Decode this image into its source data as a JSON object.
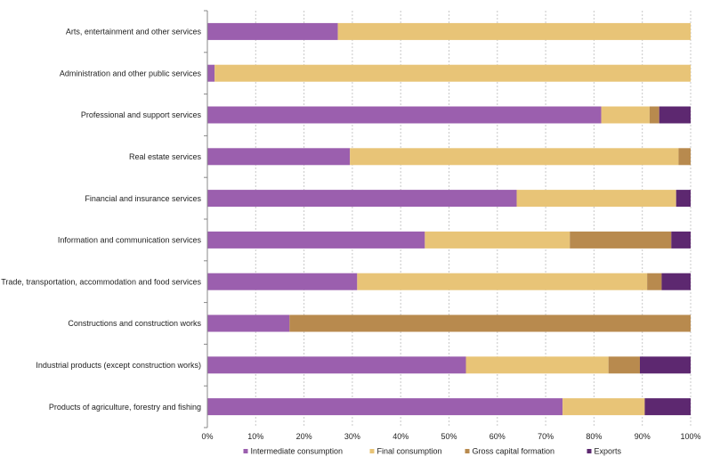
{
  "chart_data": {
    "type": "bar",
    "orientation": "horizontal",
    "stacked": true,
    "percent": true,
    "title": "",
    "xlabel": "",
    "ylabel": "",
    "xlim": [
      0,
      100
    ],
    "grid": "vertical dashed",
    "legend_position": "bottom",
    "x_ticks": [
      "0%",
      "10%",
      "20%",
      "30%",
      "40%",
      "50%",
      "60%",
      "70%",
      "80%",
      "90%",
      "100%"
    ],
    "categories": [
      "Arts, entertainment and other services",
      "Administration and other public services",
      "Professional and support services",
      "Real estate services",
      "Financial and insurance services",
      "Information and communication services",
      "Trade, transportation, accommodation and food services",
      "Constructions and construction works",
      "Industrial products (except construction works)",
      "Products of agriculture, forestry and fishing"
    ],
    "series": [
      {
        "name": "Intermediate consumption",
        "color": "#9b5fae",
        "values": [
          27,
          1.5,
          81.5,
          29.5,
          64,
          45,
          31,
          17,
          53.5,
          73.5
        ]
      },
      {
        "name": "Final consumption",
        "color": "#e8c477",
        "values": [
          73,
          98.5,
          10,
          68,
          33,
          30,
          60,
          0,
          29.5,
          17
        ]
      },
      {
        "name": "Gross capital formation",
        "color": "#b88a4e",
        "values": [
          0,
          0,
          2,
          2.5,
          0,
          21,
          3,
          83,
          6.5,
          0
        ]
      },
      {
        "name": "Exports",
        "color": "#5d2870",
        "values": [
          0,
          0,
          6.5,
          0,
          3,
          4,
          6,
          0,
          10.5,
          9.5
        ]
      }
    ]
  }
}
